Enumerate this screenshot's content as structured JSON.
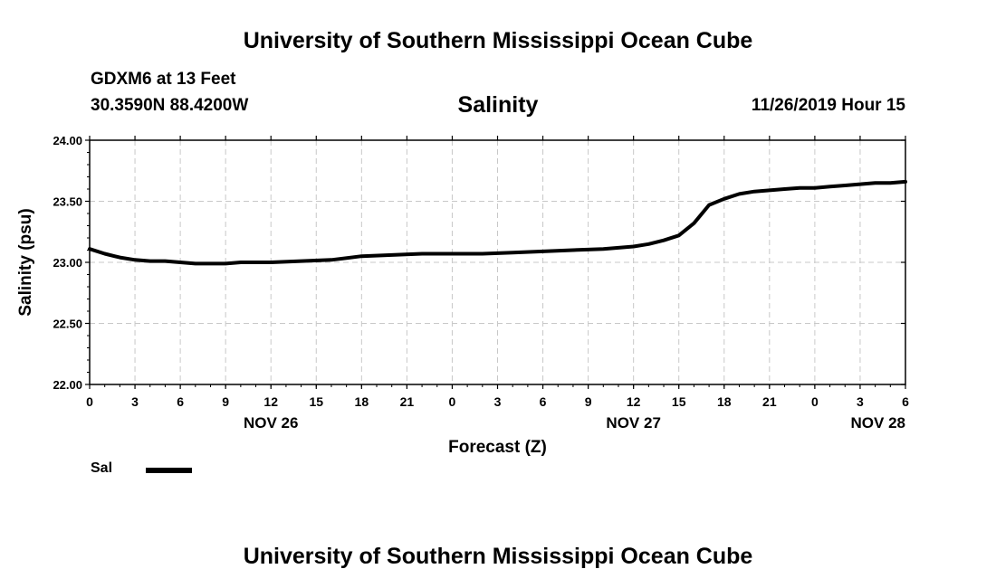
{
  "header": {
    "title": "University of Southern Mississippi Ocean Cube",
    "station": "GDXM6 at 13 Feet",
    "coords": "30.3590N 88.4200W",
    "variable": "Salinity",
    "datetime": "11/26/2019 Hour 15"
  },
  "footer": {
    "title": "University of Southern Mississippi Ocean Cube"
  },
  "legend": {
    "label": "Sal",
    "color": "#000000"
  },
  "chart_data": {
    "type": "line",
    "title": "Salinity",
    "xlabel": "Forecast (Z)",
    "ylabel": "Salinity (psu)",
    "ylim": [
      22.0,
      24.0
    ],
    "xlim": [
      0,
      54
    ],
    "x_unit": "forecast hours from 11/26 00Z",
    "grid": true,
    "y_ticks": [
      "22.00",
      "22.50",
      "23.00",
      "23.50",
      "24.00"
    ],
    "x_tick_hours": [
      0,
      3,
      6,
      9,
      12,
      15,
      18,
      21,
      24,
      27,
      30,
      33,
      36,
      39,
      42,
      45,
      48,
      51,
      54
    ],
    "x_tick_labels": [
      "0",
      "3",
      "6",
      "9",
      "12",
      "15",
      "18",
      "21",
      "0",
      "3",
      "6",
      "9",
      "12",
      "15",
      "18",
      "21",
      "0",
      "3",
      "6"
    ],
    "date_labels": [
      {
        "hour": 12,
        "label": "NOV 26"
      },
      {
        "hour": 36,
        "label": "NOV 27"
      },
      {
        "hour": 54,
        "label": "NOV 28"
      }
    ],
    "series": [
      {
        "name": "Sal",
        "color": "#000000",
        "x": [
          0,
          1,
          2,
          3,
          4,
          5,
          6,
          7,
          8,
          9,
          10,
          12,
          14,
          16,
          18,
          20,
          22,
          24,
          26,
          28,
          30,
          32,
          34,
          36,
          37,
          38,
          39,
          40,
          41,
          42,
          43,
          44,
          45,
          46,
          47,
          48,
          49,
          50,
          51,
          52,
          53,
          54
        ],
        "values": [
          23.11,
          23.07,
          23.04,
          23.02,
          23.01,
          23.01,
          23.0,
          22.99,
          22.99,
          22.99,
          23.0,
          23.0,
          23.01,
          23.02,
          23.05,
          23.06,
          23.07,
          23.07,
          23.07,
          23.08,
          23.09,
          23.1,
          23.11,
          23.13,
          23.15,
          23.18,
          23.22,
          23.32,
          23.47,
          23.52,
          23.56,
          23.58,
          23.59,
          23.6,
          23.61,
          23.61,
          23.62,
          23.63,
          23.64,
          23.65,
          23.65,
          23.66
        ]
      }
    ]
  }
}
